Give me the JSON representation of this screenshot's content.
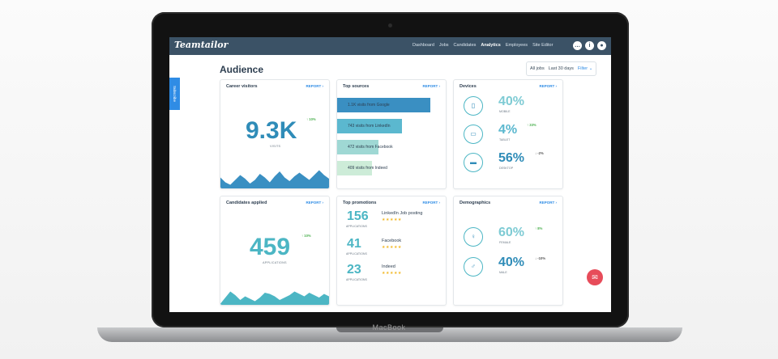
{
  "nav": {
    "logo": "Teamtailor",
    "links": [
      "Dashboard",
      "Jobs",
      "Candidates",
      "Analytics",
      "Employees",
      "Site Editor"
    ],
    "active": "Analytics",
    "icons": [
      "more-icon",
      "info-icon",
      "user-avatar-icon"
    ]
  },
  "subscribe": "Subscribe",
  "page": {
    "title": "Audience",
    "filters": {
      "jobs": "All jobs",
      "range": "Last 30 days",
      "filter_label": "Filter"
    }
  },
  "cards": {
    "career_visitors": {
      "title": "Career visitors",
      "report": "REPORT",
      "value": "9.3K",
      "label": "VISITS",
      "trend": "10%",
      "trend_dir": "up",
      "spark": [
        0.45,
        0.25,
        0.15,
        0.35,
        0.55,
        0.4,
        0.2,
        0.35,
        0.6,
        0.45,
        0.25,
        0.5,
        0.7,
        0.45,
        0.3,
        0.5,
        0.65,
        0.5,
        0.35,
        0.55,
        0.75,
        0.55,
        0.4
      ]
    },
    "top_sources": {
      "title": "Top sources",
      "report": "REPORT",
      "sources": [
        {
          "label": "1.1K visits from Google",
          "share": 0.86,
          "color": "#3a8fc2"
        },
        {
          "label": "743 visits from LinkedIn",
          "share": 0.6,
          "color": "#5bb8cf"
        },
        {
          "label": "472 visits from Facebook",
          "share": 0.38,
          "color": "#9fd8d4"
        },
        {
          "label": "409 visits from Indeed",
          "share": 0.32,
          "color": "#cdecd8"
        }
      ]
    },
    "devices": {
      "title": "Devices",
      "report": "REPORT",
      "items": [
        {
          "icon": "mobile-icon",
          "pct": "40%",
          "label": "MOBILE",
          "trend": "",
          "trend_dir": "",
          "color": "#7ecbd4"
        },
        {
          "icon": "tablet-icon",
          "pct": "4%",
          "label": "TABLET",
          "trend": "33%",
          "trend_dir": "up",
          "color": "#5bb8cf"
        },
        {
          "icon": "desktop-icon",
          "pct": "56%",
          "label": "DESKTOP",
          "trend": "-2%",
          "trend_dir": "down",
          "color": "#2f8cb8"
        }
      ]
    },
    "candidates_applied": {
      "title": "Candidates applied",
      "report": "REPORT",
      "value": "459",
      "label": "APPLICATIONS",
      "trend": "10%",
      "trend_dir": "up",
      "spark": [
        0.05,
        0.3,
        0.55,
        0.4,
        0.2,
        0.35,
        0.25,
        0.15,
        0.3,
        0.5,
        0.45,
        0.35,
        0.2,
        0.3,
        0.4,
        0.55,
        0.45,
        0.35,
        0.5,
        0.4,
        0.3,
        0.45,
        0.35
      ]
    },
    "top_promotions": {
      "title": "Top promotions",
      "report": "REPORT",
      "items": [
        {
          "count": "156",
          "apps_label": "APPLICATIONS",
          "name": "LinkedIn Job posting",
          "stars": "★★★★★"
        },
        {
          "count": "41",
          "apps_label": "APPLICATIONS",
          "name": "Facebook",
          "stars": "★★★★★"
        },
        {
          "count": "23",
          "apps_label": "APPLICATIONS",
          "name": "Indeed",
          "stars": "★★★★★"
        }
      ]
    },
    "demographics": {
      "title": "Demographics",
      "report": "REPORT",
      "items": [
        {
          "icon": "female-icon",
          "pct": "60%",
          "label": "FEMALE",
          "trend": "8%",
          "trend_dir": "up",
          "color": "#7ecbd4"
        },
        {
          "icon": "male-icon",
          "pct": "40%",
          "label": "MALE",
          "trend": "-10%",
          "trend_dir": "down",
          "color": "#2f8cb8"
        }
      ]
    }
  },
  "device_label": "MacBook",
  "colors": {
    "nav": "#3b5266",
    "accent": "#2f8ce5",
    "chart_teal": "#4cb6c4",
    "chat": "#e74c5a"
  }
}
